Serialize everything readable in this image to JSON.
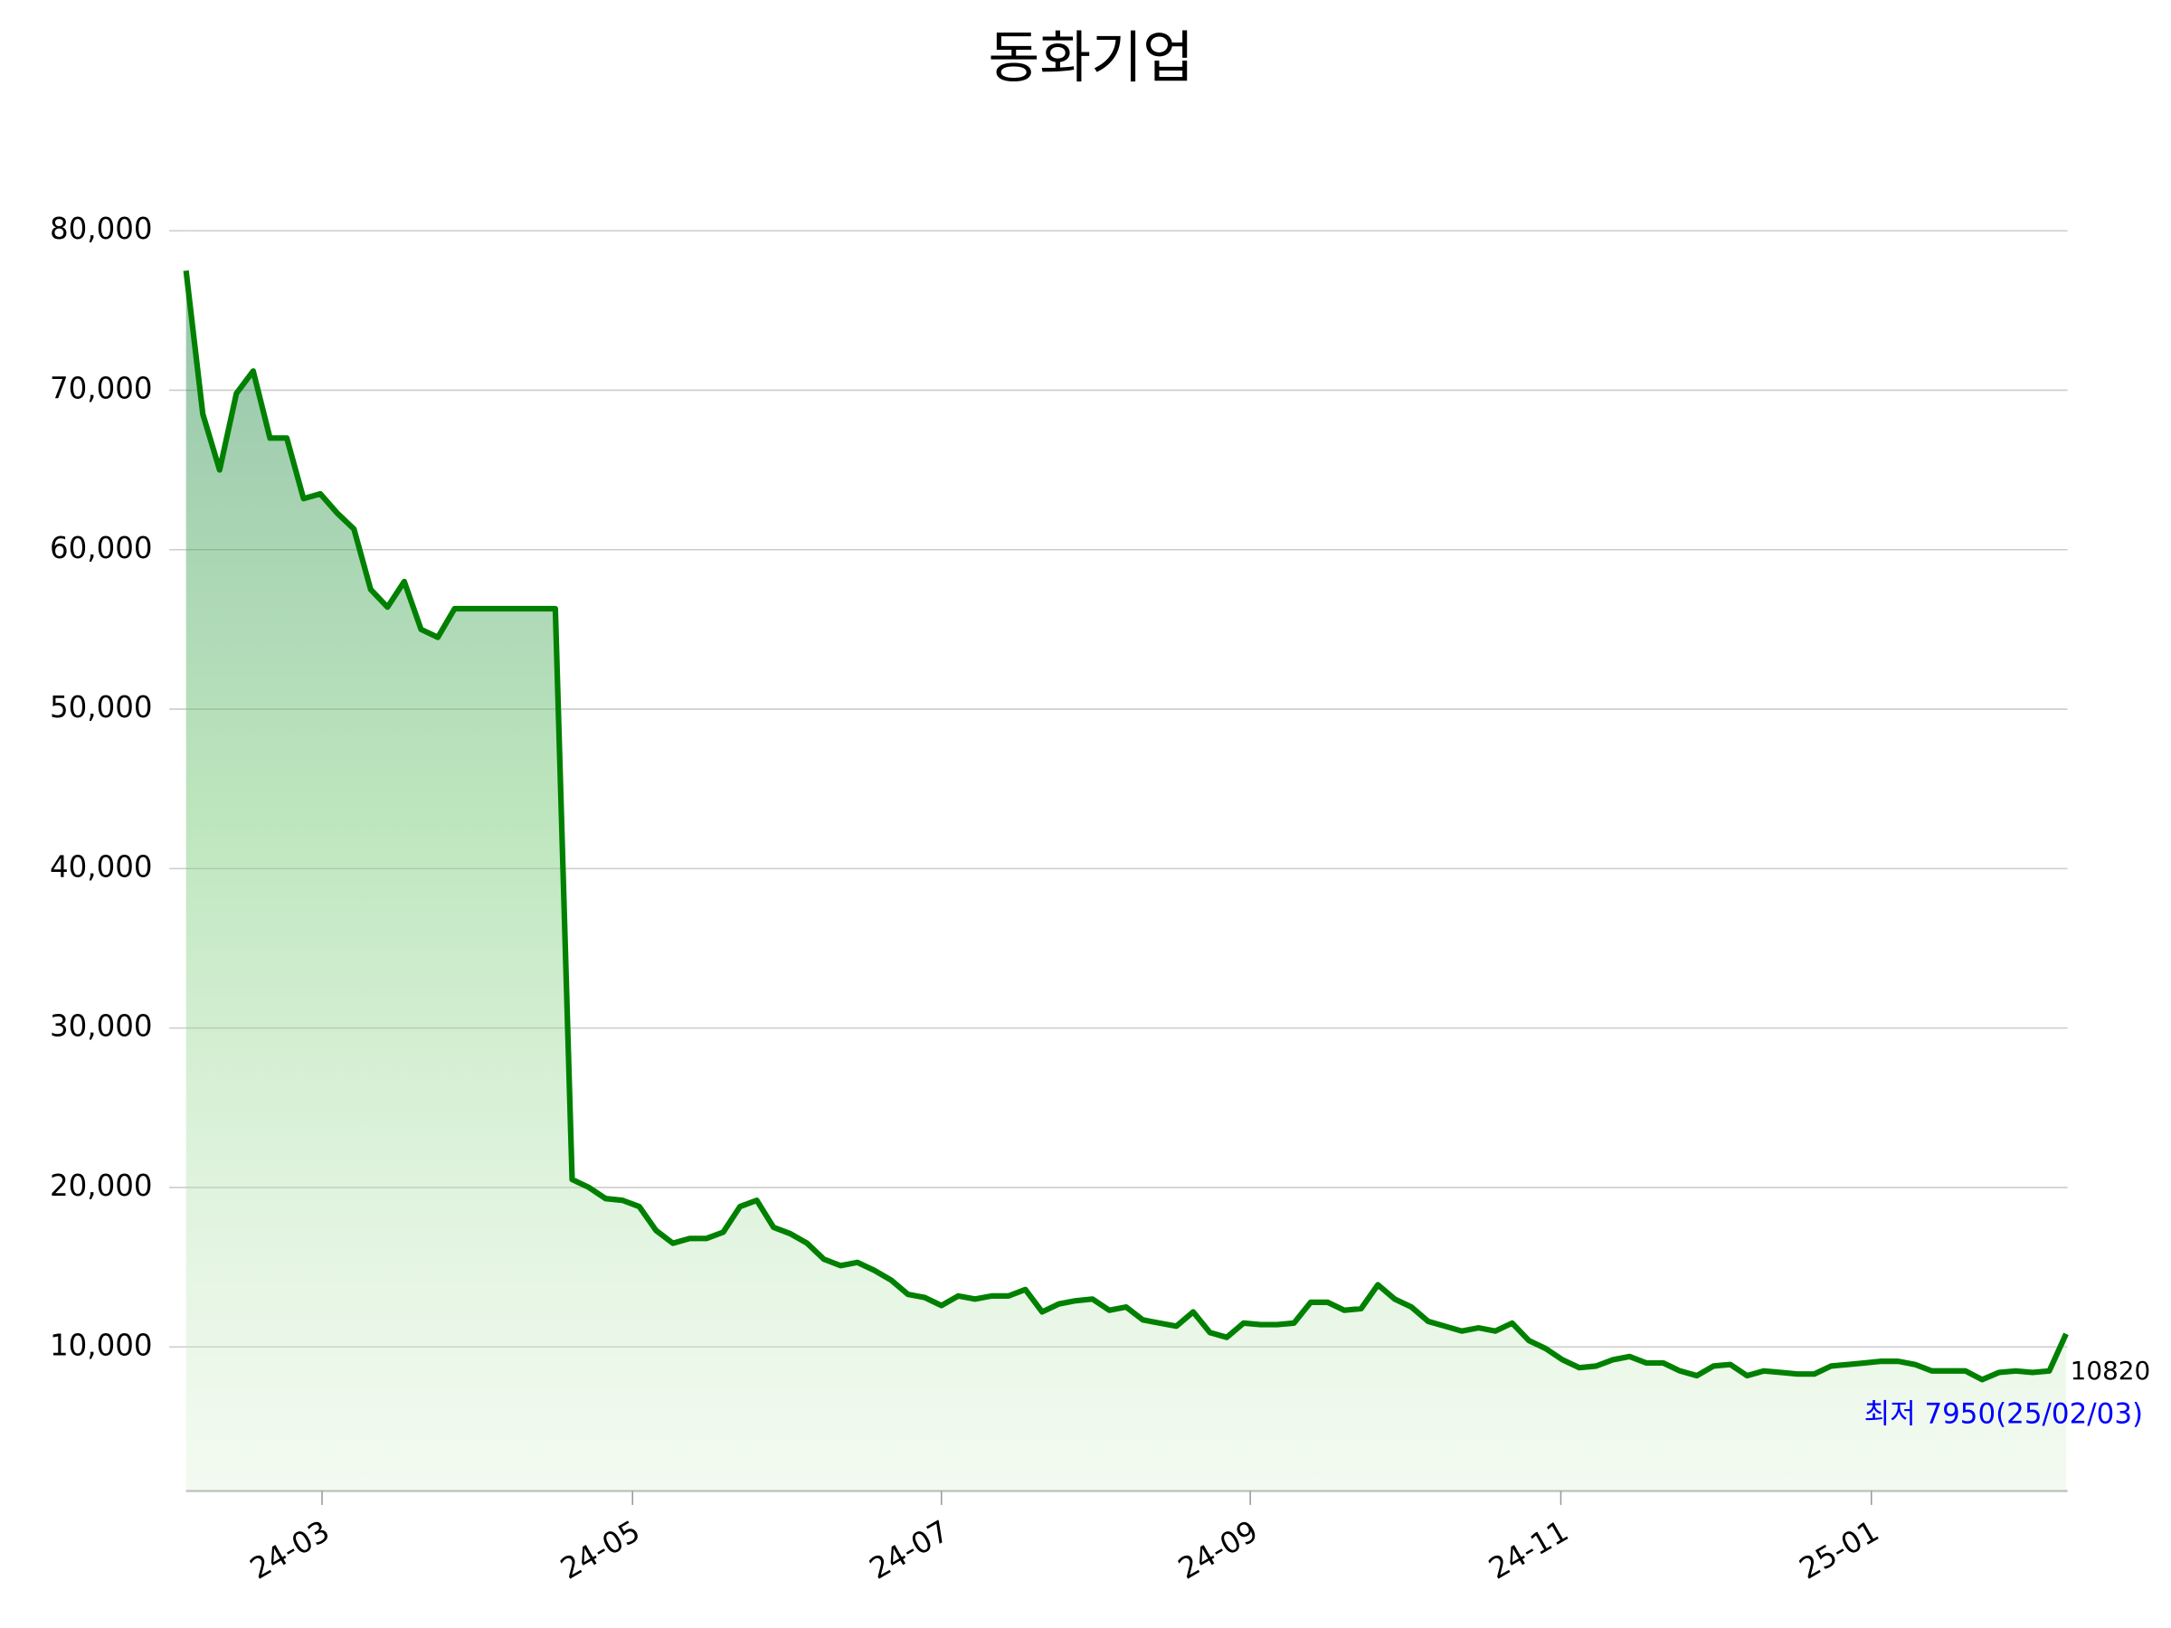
{
  "chart_data": {
    "type": "line",
    "title": "동화기업",
    "series": [
      {
        "name": "동화기업",
        "color": "#008000",
        "values": [
          77500,
          68500,
          65000,
          69800,
          71200,
          67000,
          67000,
          63200,
          63500,
          62300,
          61300,
          57500,
          56400,
          58000,
          55000,
          54500,
          56300,
          56300,
          56300,
          56300,
          56300,
          56300,
          56300,
          20500,
          20000,
          19300,
          19200,
          18800,
          17300,
          16500,
          16800,
          16800,
          17200,
          18800,
          19200,
          17500,
          17100,
          16500,
          15500,
          15100,
          15300,
          14800,
          14200,
          13300,
          13100,
          12600,
          13200,
          13000,
          13200,
          13200,
          13600,
          12200,
          12700,
          12900,
          13000,
          12300,
          12500,
          11700,
          11500,
          11300,
          12200,
          10900,
          10600,
          11500,
          11400,
          11400,
          11500,
          12800,
          12800,
          12300,
          12400,
          13900,
          13000,
          12500,
          11600,
          11300,
          11000,
          11200,
          11000,
          11500,
          10400,
          9900,
          9200,
          8700,
          8800,
          9200,
          9400,
          9000,
          9000,
          8500,
          8200,
          8800,
          8900,
          8200,
          8500,
          8400,
          8300,
          8300,
          8800,
          8900,
          9000,
          9100,
          9100,
          8900,
          8500,
          8500,
          8500,
          7950,
          8400,
          8500,
          8400,
          8500,
          10820
        ]
      }
    ],
    "annotation": "최저 7950(25/02/03)",
    "xlim": [
      0,
      112
    ],
    "xticks": [
      {
        "value": 8.1,
        "label": "24-03"
      },
      {
        "value": 26.6,
        "label": "24-05"
      },
      {
        "value": 45,
        "label": "24-07"
      },
      {
        "value": 63.4,
        "label": "24-09"
      },
      {
        "value": 81.9,
        "label": "24-11"
      },
      {
        "value": 100.4,
        "label": "25-01"
      }
    ],
    "ylim": [
      970,
      80000
    ],
    "yticks": [
      {
        "value": 10000,
        "label": "10,000"
      },
      {
        "value": 20000,
        "label": "20,000"
      },
      {
        "value": 30000,
        "label": "30,000"
      },
      {
        "value": 40000,
        "label": "40,000"
      },
      {
        "value": 50000,
        "label": "50,000"
      },
      {
        "value": 60000,
        "label": "60,000"
      },
      {
        "value": 70000,
        "label": "70,000"
      },
      {
        "value": 80000,
        "label": "80,000"
      }
    ],
    "grid": true
  }
}
